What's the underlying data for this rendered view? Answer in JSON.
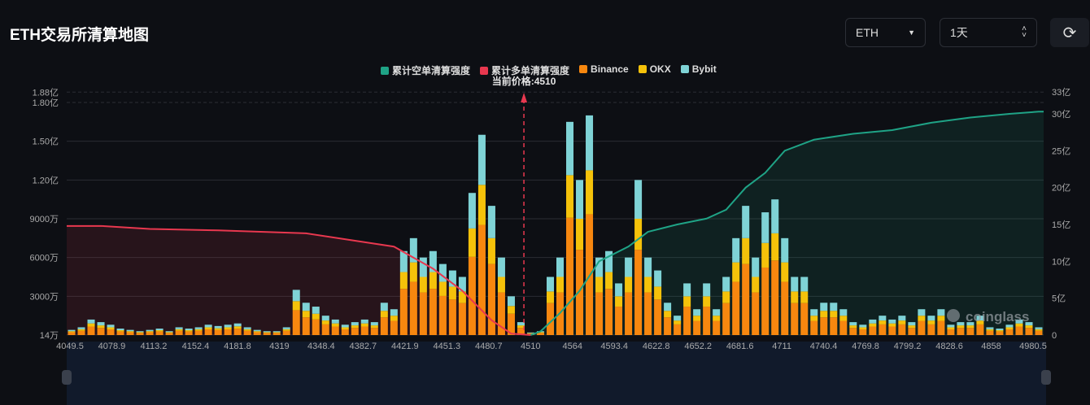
{
  "header": {
    "title": "ETH交易所清算地图",
    "coin_select": "ETH",
    "period_select": "1天",
    "refresh_icon": "refresh-icon"
  },
  "watermark": "coinglass",
  "chart_data": {
    "type": "bar",
    "current_price_label": "当前价格:4510",
    "current_price_index": 46.8,
    "legend": [
      {
        "name": "累计空单清算强度",
        "color": "#1fa386"
      },
      {
        "name": "累计多单清算强度",
        "color": "#e8384f"
      },
      {
        "name": "Binance",
        "color": "#f7870f"
      },
      {
        "name": "OKX",
        "color": "#f5c20a"
      },
      {
        "name": "Bybit",
        "color": "#7fd3d6"
      }
    ],
    "x_tick_labels": [
      "4049.5",
      "4078.9",
      "4113.2",
      "4152.4",
      "4181.8",
      "4319",
      "4348.4",
      "4382.7",
      "4421.9",
      "4451.3",
      "4480.7",
      "4510",
      "4564",
      "4593.4",
      "4622.8",
      "4652.2",
      "4681.6",
      "4711",
      "4740.4",
      "4769.8",
      "4799.2",
      "4828.6",
      "4858",
      "4980.5"
    ],
    "y_left_ticks": [
      {
        "v": 0.14,
        "label": "14万"
      },
      {
        "v": 30,
        "label": "3000万"
      },
      {
        "v": 60,
        "label": "6000万"
      },
      {
        "v": 90,
        "label": "9000万"
      },
      {
        "v": 120,
        "label": "1.20亿"
      },
      {
        "v": 150,
        "label": "1.50亿"
      },
      {
        "v": 180,
        "label": "1.80亿"
      },
      {
        "v": 188,
        "label": "1.88亿"
      }
    ],
    "y_left_unit": "百万",
    "y_right_ticks": [
      {
        "v": 0,
        "label": "0"
      },
      {
        "v": 5,
        "label": "5亿"
      },
      {
        "v": 10,
        "label": "10亿"
      },
      {
        "v": 15,
        "label": "15亿"
      },
      {
        "v": 20,
        "label": "20亿"
      },
      {
        "v": 25,
        "label": "25亿"
      },
      {
        "v": 30,
        "label": "30亿"
      },
      {
        "v": 33,
        "label": "33亿"
      }
    ],
    "y_right_unit": "亿",
    "bar_totals": [
      4,
      6,
      12,
      10,
      8,
      5,
      4,
      3,
      4,
      5,
      3,
      6,
      5,
      6,
      8,
      7,
      8,
      9,
      6,
      4,
      3,
      3,
      6,
      35,
      25,
      22,
      15,
      12,
      8,
      10,
      12,
      10,
      25,
      20,
      65,
      75,
      60,
      65,
      55,
      50,
      45,
      110,
      155,
      100,
      60,
      30,
      10,
      2,
      3,
      45,
      60,
      165,
      120,
      170,
      60,
      65,
      40,
      60,
      120,
      60,
      50,
      25,
      15,
      40,
      20,
      40,
      20,
      45,
      75,
      100,
      60,
      95,
      105,
      75,
      45,
      45,
      20,
      25,
      25,
      20,
      10,
      8,
      12,
      15,
      12,
      15,
      10,
      20,
      15,
      20,
      8,
      10,
      10,
      15,
      6,
      5,
      8,
      12,
      10,
      6
    ],
    "exchange_share": {
      "Binance": 0.55,
      "OKX": 0.2,
      "Bybit": 0.25
    },
    "long_cumulative": [
      [
        0,
        14.8
      ],
      [
        3,
        14.8
      ],
      [
        8,
        14.4
      ],
      [
        15,
        14.2
      ],
      [
        24,
        13.8
      ],
      [
        33,
        12
      ],
      [
        37,
        9
      ],
      [
        40,
        6
      ],
      [
        43,
        2
      ],
      [
        45,
        0.2
      ],
      [
        47,
        0
      ]
    ],
    "short_cumulative": [
      [
        47,
        0
      ],
      [
        48,
        0.5
      ],
      [
        50,
        3
      ],
      [
        52,
        6
      ],
      [
        54,
        10
      ],
      [
        57,
        12
      ],
      [
        59,
        14
      ],
      [
        62,
        15
      ],
      [
        65,
        15.8
      ],
      [
        67,
        17
      ],
      [
        69,
        20
      ],
      [
        71,
        22
      ],
      [
        73,
        25
      ],
      [
        76,
        26.5
      ],
      [
        80,
        27.3
      ],
      [
        84,
        27.8
      ],
      [
        88,
        28.8
      ],
      [
        92,
        29.5
      ],
      [
        96,
        30
      ],
      [
        99,
        30.3
      ]
    ]
  }
}
